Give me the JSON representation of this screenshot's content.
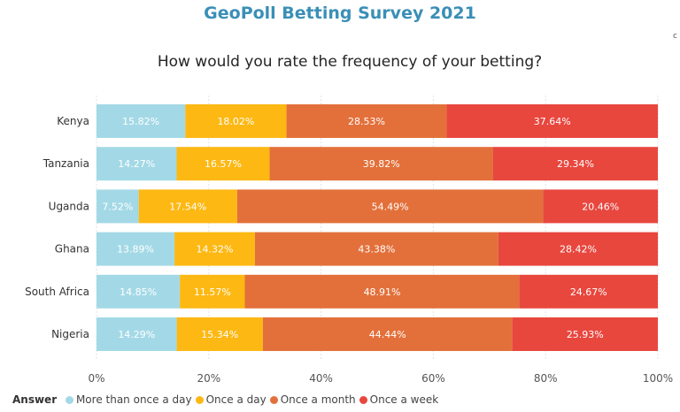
{
  "header": {
    "title": "GeoPoll Betting Survey 2021",
    "subtitle": "How would you rate the frequency of your betting?"
  },
  "chart_data": {
    "type": "bar",
    "orientation": "horizontal",
    "stacked": true,
    "categories": [
      "Kenya",
      "Tanzania",
      "Uganda",
      "Ghana",
      "South Africa",
      "Nigeria"
    ],
    "series": [
      {
        "name": "More than once a day",
        "color": "#a3d9e6",
        "values": [
          15.82,
          14.27,
          7.52,
          13.89,
          14.85,
          14.29
        ]
      },
      {
        "name": "Once a day",
        "color": "#fdb813",
        "values": [
          18.02,
          16.57,
          17.54,
          14.32,
          11.57,
          15.34
        ]
      },
      {
        "name": "Once a month",
        "color": "#e3703a",
        "values": [
          28.53,
          39.82,
          54.49,
          43.38,
          48.91,
          44.44
        ]
      },
      {
        "name": "Once a week",
        "color": "#e8473e",
        "values": [
          37.64,
          29.34,
          20.46,
          28.42,
          24.67,
          25.93
        ]
      }
    ],
    "xlim": [
      0,
      100
    ],
    "xticks": [
      "0%",
      "20%",
      "40%",
      "60%",
      "80%",
      "100%"
    ],
    "value_labels": [
      [
        "15.82%",
        "14.27%",
        "7.52%",
        "13.89%",
        "14.85%",
        "14.29%"
      ],
      [
        "18.02%",
        "16.57%",
        "17.54%",
        "14.32%",
        "11.57%",
        "15.34%"
      ],
      [
        "28.53%",
        "39.82%",
        "54.49%",
        "43.38%",
        "48.91%",
        "44.44%"
      ],
      [
        "37.64%",
        "29.34%",
        "20.46%",
        "28.42%",
        "24.67%",
        "25.93%"
      ]
    ],
    "grid": true,
    "legend": {
      "title": "Answer",
      "placement": "bottom-left"
    }
  },
  "corner_mark": "c"
}
